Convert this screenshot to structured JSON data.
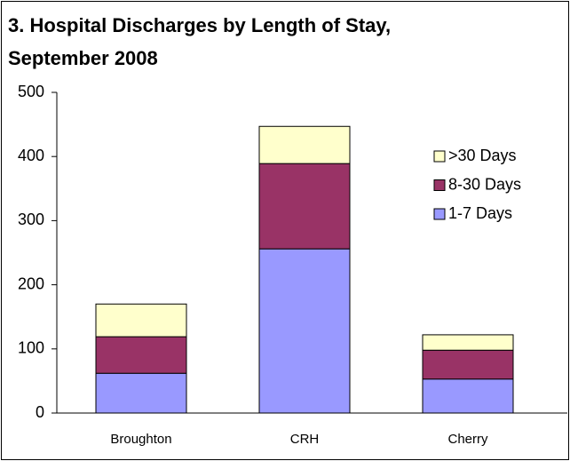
{
  "chart_data": {
    "type": "stacked_bar",
    "title": "3.  Hospital Discharges by Length of Stay,\nSeptember 2008",
    "categories": [
      "Broughton",
      "CRH",
      "Cherry"
    ],
    "series": [
      {
        "name": "1-7 Days",
        "color": "#9999ff",
        "values": [
          62,
          256,
          53
        ]
      },
      {
        "name": "8-30 Days",
        "color": "#993366",
        "values": [
          57,
          133,
          45
        ]
      },
      {
        "name": ">30 Days",
        "color": "#ffffcc",
        "values": [
          51,
          58,
          24
        ]
      }
    ],
    "ylim": [
      0,
      500
    ],
    "yticks": [
      0,
      100,
      200,
      300,
      400,
      500
    ],
    "grid": false,
    "legend": "right"
  }
}
